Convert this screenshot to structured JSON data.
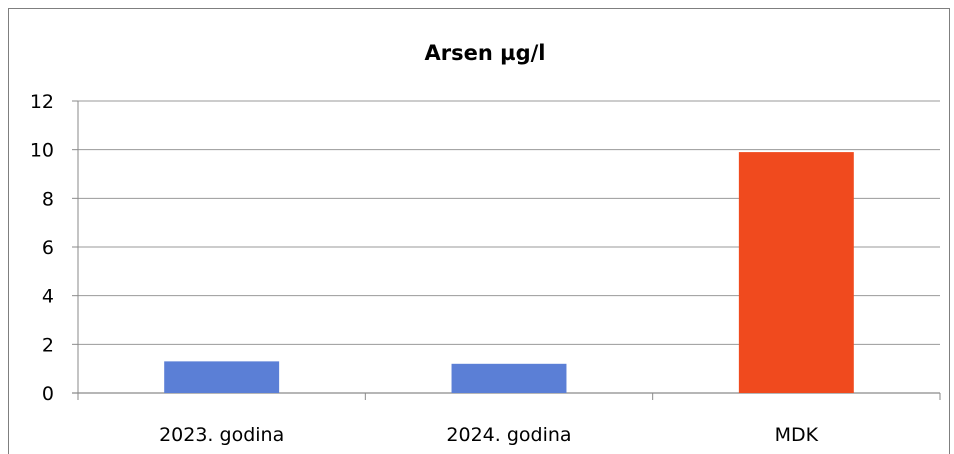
{
  "chart_data": {
    "type": "bar",
    "title": "Arsen µg/l",
    "categories": [
      "2023. godina",
      "2024. godina",
      "MDK"
    ],
    "values": [
      1.3,
      1.2,
      9.9
    ],
    "colors": [
      "#5b7fd6",
      "#5b7fd6",
      "#f04a1e"
    ],
    "ylim": [
      0,
      12
    ],
    "yticks": [
      "0",
      "2",
      "4",
      "6",
      "8",
      "10",
      "12"
    ],
    "grid": true,
    "legend": "none"
  }
}
